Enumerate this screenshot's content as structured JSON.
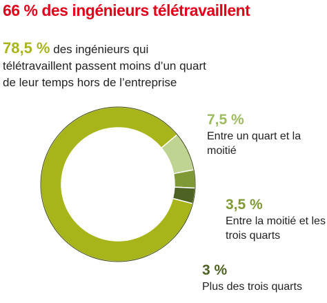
{
  "title": "66 % des ingénieurs télétravaillent",
  "chart_data": {
    "type": "pie",
    "title": "66 % des ingénieurs télétravaillent",
    "slices": [
      {
        "value": 78.5,
        "label": "78,5 %",
        "text": "des ingénieurs qui télétravaillent passent moins d’un quart de leur temps hors de l’entreprise",
        "color": "#a8b51a"
      },
      {
        "value": 7.5,
        "label": "7,5 %",
        "text": "Entre un quart et la moitié",
        "color": "#bfd392"
      },
      {
        "value": 3.5,
        "label": "3,5 %",
        "text": "Entre la moitié et les trois quarts",
        "color": "#7e9936"
      },
      {
        "value": 3,
        "label": "3 %",
        "text": "Plus des trois quarts",
        "color": "#4e6323"
      }
    ]
  }
}
